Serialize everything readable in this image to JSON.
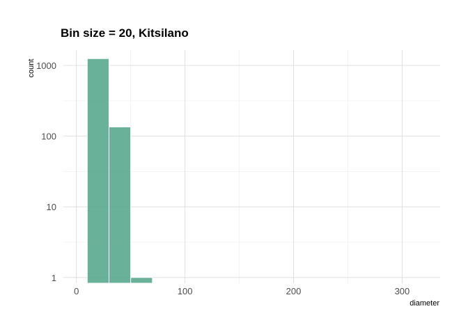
{
  "chart_data": {
    "type": "bar",
    "title": "Bin size = 20, Kitsilano",
    "xlabel": "diameter",
    "ylabel": "count",
    "y_scale": "log10",
    "xlim": [
      -12,
      335
    ],
    "ylim": [
      0.83,
      1650
    ],
    "x_ticks": [
      0,
      100,
      200,
      300
    ],
    "y_ticks": [
      1,
      10,
      100,
      1000
    ],
    "bin_width": 20,
    "bins": [
      {
        "x0": 10,
        "x1": 30,
        "count": 1250
      },
      {
        "x0": 30,
        "x1": 50,
        "count": 135
      },
      {
        "x0": 50,
        "x1": 70,
        "count": 1
      }
    ],
    "bar_color": "#5aa98e",
    "bar_opacity": 0.9,
    "grid": true
  }
}
